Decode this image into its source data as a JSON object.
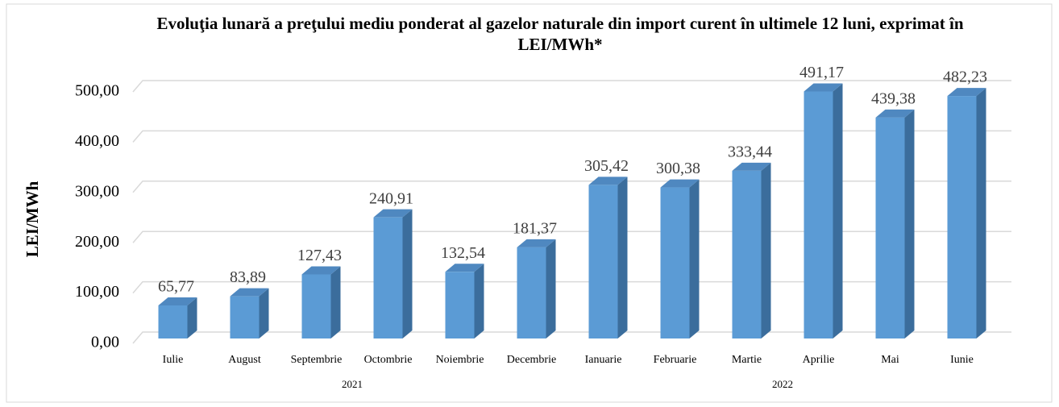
{
  "chart_data": {
    "type": "bar3d",
    "title": "Evoluţia lunară a preţului mediu ponderat al gazelor naturale din import curent în ultimele 12 luni, exprimat în LEI/MWh*",
    "y_label": "LEI/MWh",
    "categories": [
      "Iulie",
      "August",
      "Septembrie",
      "Octombrie",
      "Noiembrie",
      "Decembrie",
      "Ianuarie",
      "Februarie",
      "Martie",
      "Aprilie",
      "Mai",
      "Iunie"
    ],
    "groups": [
      {
        "label": "2021",
        "count": 6
      },
      {
        "label": "2022",
        "count": 6
      }
    ],
    "values": [
      65.77,
      83.89,
      127.43,
      240.91,
      132.54,
      181.37,
      305.42,
      300.38,
      333.44,
      491.17,
      439.38,
      482.23
    ],
    "value_labels": [
      "65,77",
      "83,89",
      "127,43",
      "240,91",
      "132,54",
      "181,37",
      "305,42",
      "300,38",
      "333,44",
      "491,17",
      "439,38",
      "482,23"
    ],
    "color": "#5b9bd5",
    "ylim": [
      0,
      500
    ],
    "yticks": [
      {
        "value": 0,
        "label": "0,00"
      },
      {
        "value": 100,
        "label": "100,00"
      },
      {
        "value": 200,
        "label": "200,00"
      },
      {
        "value": 300,
        "label": "300,00"
      },
      {
        "value": 400,
        "label": "400,00"
      },
      {
        "value": 500,
        "label": "500,00"
      }
    ],
    "grid": true
  }
}
